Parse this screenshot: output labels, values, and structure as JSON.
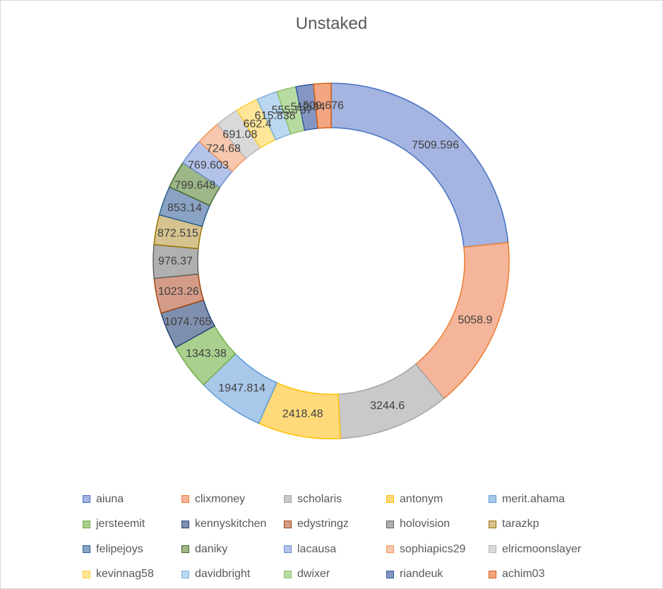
{
  "chart_data": {
    "type": "pie",
    "variant": "doughnut",
    "title": "Unstaked",
    "legend_position": "bottom",
    "slices": [
      {
        "label": "aiuna",
        "value": 7509.596,
        "display": "7509.596",
        "fill": "#a5b4e0",
        "stroke": "#4472c4"
      },
      {
        "label": "clixmoney",
        "value": 5058.9,
        "display": "5058.9",
        "fill": "#f4b59a",
        "stroke": "#ed7d31"
      },
      {
        "label": "scholaris",
        "value": 3244.6,
        "display": "3244.6",
        "fill": "#c9c9c9",
        "stroke": "#a5a5a5"
      },
      {
        "label": "antonym",
        "value": 2418.48,
        "display": "2418.48",
        "fill": "#ffd97a",
        "stroke": "#ffc000"
      },
      {
        "label": "merit.ahama",
        "value": 1947.814,
        "display": "1947.814",
        "fill": "#a9c8ea",
        "stroke": "#5b9bd5"
      },
      {
        "label": "jersteemit",
        "value": 1343.38,
        "display": "1343.38",
        "fill": "#a9d08e",
        "stroke": "#70ad47"
      },
      {
        "label": "kennyskitchen",
        "value": 1074.765,
        "display": "1074.765",
        "fill": "#7f8fae",
        "stroke": "#264478"
      },
      {
        "label": "edystringz",
        "value": 1023.26,
        "display": "1023.26",
        "fill": "#d49c88",
        "stroke": "#9e480e"
      },
      {
        "label": "holovision",
        "value": 976.37,
        "display": "976.37",
        "fill": "#b0b0b0",
        "stroke": "#636363"
      },
      {
        "label": "tarazkp",
        "value": 872.515,
        "display": "872.515",
        "fill": "#d6c38f",
        "stroke": "#997300"
      },
      {
        "label": "felipejoys",
        "value": 853.14,
        "display": "853.14",
        "fill": "#8aa3c4",
        "stroke": "#255e91"
      },
      {
        "label": "daniky",
        "value": 799.648,
        "display": "799.648",
        "fill": "#9db788",
        "stroke": "#43682b"
      },
      {
        "label": "lacausa",
        "value": 769.603,
        "display": "769.603",
        "fill": "#b4c3ea",
        "stroke": "#698ed0"
      },
      {
        "label": "sophiapics29",
        "value": 724.68,
        "display": "724.68",
        "fill": "#f8c7ad",
        "stroke": "#f1975a"
      },
      {
        "label": "elricmoonslayer",
        "value": 691.08,
        "display": "691.08",
        "fill": "#d9d9d9",
        "stroke": "#b7b7b7"
      },
      {
        "label": "kevinnag58",
        "value": 662.4,
        "display": "662.4",
        "fill": "#ffe699",
        "stroke": "#ffcd33"
      },
      {
        "label": "davidbright",
        "value": 615.838,
        "display": "615.838",
        "fill": "#bcd7f0",
        "stroke": "#7cafdd"
      },
      {
        "label": "dwixer",
        "value": 555.737,
        "display": "555.737",
        "fill": "#b8dba3",
        "stroke": "#8cc168"
      },
      {
        "label": "riandeuk",
        "value": 512.84,
        "display": "512.84",
        "fill": "#8496c4",
        "stroke": "#335aa1"
      },
      {
        "label": "achim03",
        "value": 509.676,
        "display": "509.676",
        "fill": "#f4a582",
        "stroke": "#d26012"
      }
    ]
  }
}
